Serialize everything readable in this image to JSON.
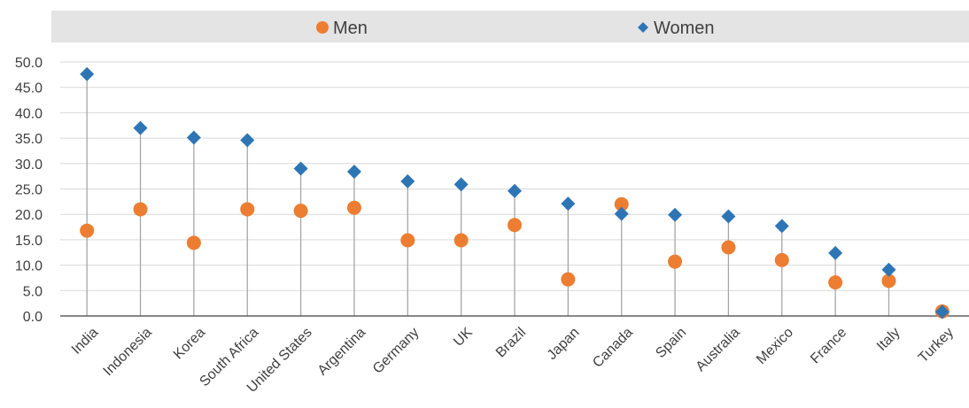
{
  "chart_data": {
    "type": "scatter",
    "categories": [
      "India",
      "Indonesia",
      "Korea",
      "South Africa",
      "United States",
      "Argentina",
      "Germany",
      "UK",
      "Brazil",
      "Japan",
      "Canada",
      "Spain",
      "Australia",
      "Mexico",
      "France",
      "Italy",
      "Turkey"
    ],
    "series": [
      {
        "name": "Men",
        "marker": "circle",
        "color": "#ED7D31",
        "values": [
          16.8,
          21.0,
          14.4,
          21.0,
          20.7,
          21.3,
          14.9,
          14.9,
          17.9,
          7.2,
          22.0,
          10.7,
          13.5,
          11.0,
          6.6,
          6.9,
          0.9
        ]
      },
      {
        "name": "Women",
        "marker": "diamond",
        "color": "#2E75B6",
        "values": [
          47.6,
          37.0,
          35.1,
          34.6,
          29.0,
          28.4,
          26.5,
          25.9,
          24.6,
          22.1,
          20.1,
          19.9,
          19.6,
          17.7,
          12.4,
          9.1,
          0.8
        ]
      }
    ],
    "ylim": [
      0,
      50
    ],
    "yticks": [
      "0.0",
      "5.0",
      "10.0",
      "15.0",
      "20.0",
      "25.0",
      "30.0",
      "35.0",
      "40.0",
      "45.0",
      "50.0"
    ],
    "grid": true,
    "legend_position": "top",
    "title": "",
    "xlabel": "",
    "ylabel": ""
  }
}
